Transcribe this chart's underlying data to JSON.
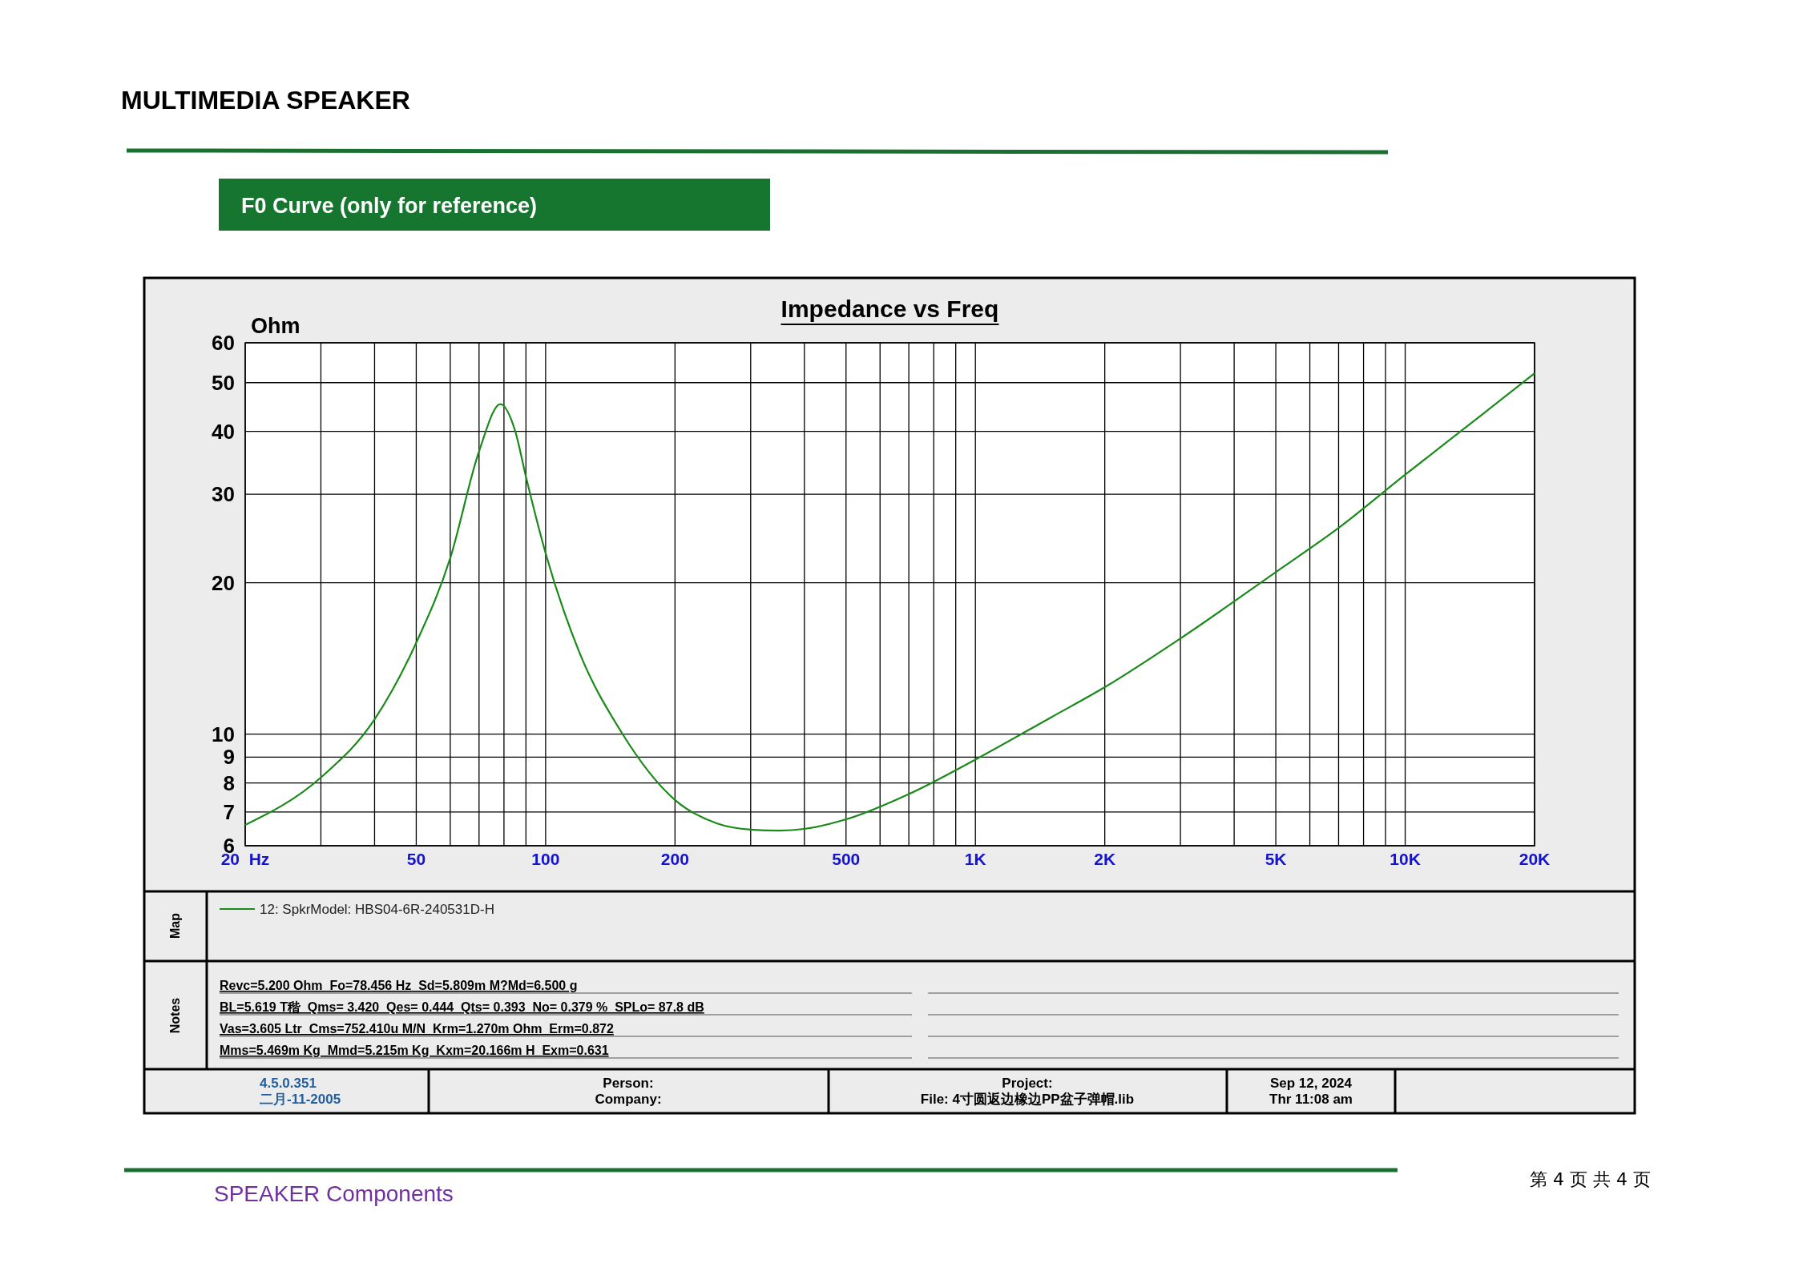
{
  "chart_data": {
    "type": "line",
    "title": "Impedance vs Freq",
    "ylabel": "Ohm",
    "log": "xy",
    "grid": true,
    "legend": "bottom",
    "xlim": [
      20,
      20000
    ],
    "ylim": [
      6,
      60
    ],
    "xticks": [
      {
        "value": 20,
        "label": "20  Hz"
      },
      {
        "value": 30,
        "label": null
      },
      {
        "value": 40,
        "label": null
      },
      50,
      {
        "value": 60,
        "label": null
      },
      {
        "value": 70,
        "label": null
      },
      {
        "value": 80,
        "label": null
      },
      {
        "value": 90,
        "label": null
      },
      100,
      200,
      {
        "value": 300,
        "label": null
      },
      {
        "value": 400,
        "label": null
      },
      500,
      {
        "value": 600,
        "label": null
      },
      {
        "value": 700,
        "label": null
      },
      {
        "value": 800,
        "label": null
      },
      {
        "value": 900,
        "label": null
      },
      {
        "value": 1000,
        "label": "1K"
      },
      {
        "value": 2000,
        "label": "2K"
      },
      {
        "value": 3000,
        "label": null
      },
      {
        "value": 4000,
        "label": null
      },
      {
        "value": 5000,
        "label": "5K"
      },
      {
        "value": 6000,
        "label": null
      },
      {
        "value": 7000,
        "label": null
      },
      {
        "value": 8000,
        "label": null
      },
      {
        "value": 9000,
        "label": null
      },
      {
        "value": 10000,
        "label": "10K"
      },
      {
        "value": 20000,
        "label": "20K"
      }
    ],
    "yticks": [
      6,
      7,
      8,
      9,
      10,
      20,
      30,
      40,
      50,
      60
    ],
    "x": [
      20,
      30,
      40,
      50,
      60,
      70,
      78.5,
      85,
      90,
      100,
      120,
      150,
      200,
      250,
      300,
      350,
      400,
      500,
      700,
      1000,
      1500,
      2000,
      3000,
      5000,
      7000,
      10000,
      15000,
      20000
    ],
    "series": [
      {
        "name": "12: SpkrModel: HBS04-6R-240531D-H",
        "color": "#1a8a1a",
        "values": [
          6.6,
          8.2,
          10.7,
          15.2,
          22.4,
          36.5,
          45.3,
          40,
          32.5,
          22.9,
          14.5,
          10.1,
          7.4,
          6.65,
          6.46,
          6.43,
          6.48,
          6.77,
          7.6,
          8.9,
          10.8,
          12.4,
          15.5,
          21,
          25.7,
          32.8,
          43,
          52.2
        ]
      }
    ],
    "annotations": [
      "MULTIMEDIA SPEAKER",
      "F0 Curve (only for reference)",
      "Revc=5.200 Ohm  Fo=78.456 Hz  Sd=5.809m M?Md=6.500 g",
      "BL=5.619 T稭  Qms= 3.420  Qes= 0.444  Qts= 0.393  No= 0.379 %  SPLo= 87.8 dB",
      "Vas=3.605 Ltr  Cms=752.410u M/N  Krm=1.270m Ohm  Erm=0.872",
      "Mms=5.469m Kg  Mmd=5.215m Kg  Kxm=20.166m H  Exm=0.631",
      "4.5.0.351",
      "二月-11-2005",
      "Person:",
      "Company:",
      "Project:",
      "File: 4寸圆返边橡边PP盆子弹帽.lib",
      "Sep 12, 2024",
      "Thr 11:08 am",
      "SPEAKER Components",
      "第 4 页 共 4 页",
      "Map",
      "Notes"
    ]
  }
}
